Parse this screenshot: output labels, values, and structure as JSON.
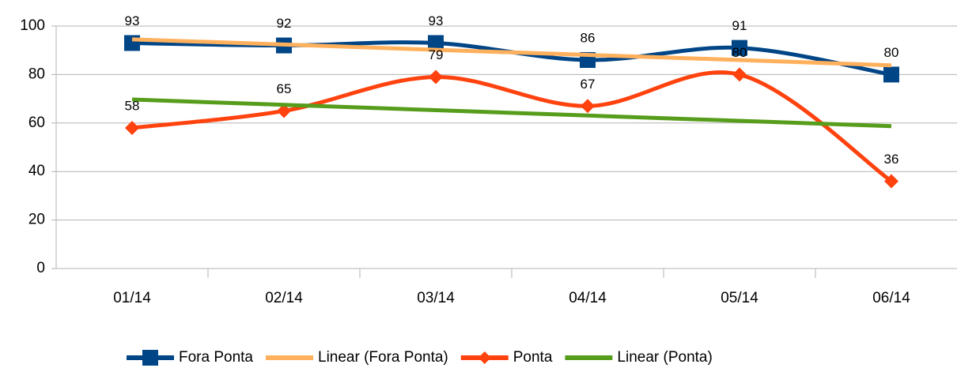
{
  "chart_data": {
    "type": "line",
    "categories": [
      "01/14",
      "02/14",
      "03/14",
      "04/14",
      "05/14",
      "06/14"
    ],
    "series": [
      {
        "name": "Fora Ponta",
        "color": "#004586",
        "values": [
          93,
          92,
          93,
          86,
          91,
          80
        ],
        "marker": "square",
        "smooth": true,
        "labels": true
      },
      {
        "name": "Linear (Fora Ponta)",
        "color": "#ffb05c",
        "values": [
          94.5,
          92.4,
          90.2,
          88.1,
          86.0,
          83.8
        ],
        "marker": "none",
        "smooth": false,
        "labels": false
      },
      {
        "name": "Ponta",
        "color": "#ff420e",
        "values": [
          58,
          65,
          79,
          67,
          80,
          36
        ],
        "marker": "diamond",
        "smooth": true,
        "labels": true
      },
      {
        "name": "Linear (Ponta)",
        "color": "#579d1c",
        "values": [
          69.7,
          67.5,
          65.3,
          63.1,
          60.9,
          58.7
        ],
        "marker": "none",
        "smooth": false,
        "labels": false
      }
    ],
    "ylim": [
      0,
      100
    ],
    "yticks": [
      0,
      20,
      40,
      60,
      80,
      100
    ],
    "grid": true,
    "legend": "bottom"
  }
}
